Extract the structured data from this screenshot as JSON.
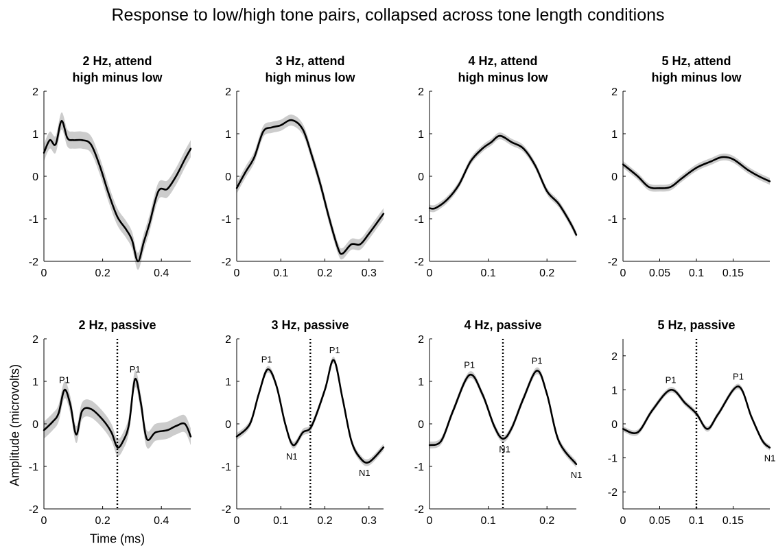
{
  "title": "Response to low/high tone pairs, collapsed across tone length conditions",
  "xlabel": "Time (ms)",
  "ylabel": "Amplitude (microvolts)",
  "colors": {
    "line": "#000000",
    "band": "#cccccc",
    "axis": "#000000"
  },
  "chart_data": [
    {
      "type": "line",
      "title": [
        "2 Hz, attend",
        "high minus low"
      ],
      "xlim": [
        0,
        0.5
      ],
      "xticks": [
        0,
        0.2,
        0.4
      ],
      "xtick_labels": [
        "0",
        "0.2",
        "0.4"
      ],
      "ylim": [
        -2,
        2
      ],
      "yticks": [
        -2,
        -1,
        0,
        1,
        2
      ],
      "yticks_labels": [
        "-2",
        "-1",
        "0",
        "1",
        "2"
      ],
      "x": [
        0,
        0.02,
        0.04,
        0.06,
        0.08,
        0.1,
        0.13,
        0.16,
        0.19,
        0.22,
        0.25,
        0.28,
        0.3,
        0.32,
        0.34,
        0.36,
        0.39,
        0.42,
        0.45,
        0.48,
        0.5
      ],
      "y": [
        0.55,
        0.85,
        0.75,
        1.3,
        0.9,
        0.85,
        0.85,
        0.75,
        0.25,
        -0.4,
        -0.95,
        -1.25,
        -1.5,
        -2.0,
        -1.55,
        -1.1,
        -0.35,
        -0.3,
        0.0,
        0.4,
        0.65
      ],
      "band": 0.2,
      "vline": null,
      "annotations": []
    },
    {
      "type": "line",
      "title": [
        "3 Hz, attend",
        "high minus low"
      ],
      "xlim": [
        0,
        0.333
      ],
      "xticks": [
        0,
        0.1,
        0.2,
        0.3
      ],
      "xtick_labels": [
        "0",
        "0.1",
        "0.2",
        "0.3"
      ],
      "ylim": [
        -2,
        2
      ],
      "yticks": [
        -2,
        -1,
        0,
        1,
        2
      ],
      "yticks_labels": [
        "-2",
        "-1",
        "0",
        "1",
        "2"
      ],
      "x": [
        0,
        0.02,
        0.04,
        0.06,
        0.08,
        0.1,
        0.125,
        0.15,
        0.17,
        0.19,
        0.21,
        0.23,
        0.24,
        0.26,
        0.28,
        0.3,
        0.333
      ],
      "y": [
        -0.28,
        0.1,
        0.45,
        1.05,
        1.15,
        1.2,
        1.32,
        1.1,
        0.5,
        -0.2,
        -1.0,
        -1.7,
        -1.82,
        -1.6,
        -1.6,
        -1.35,
        -0.88
      ],
      "band": 0.13,
      "vline": null,
      "annotations": []
    },
    {
      "type": "line",
      "title": [
        "4 Hz, attend",
        "high minus low"
      ],
      "xlim": [
        0,
        0.25
      ],
      "xticks": [
        0,
        0.1,
        0.2
      ],
      "xtick_labels": [
        "0",
        "0.1",
        "0.2"
      ],
      "ylim": [
        -2,
        2
      ],
      "yticks": [
        -2,
        -1,
        0,
        1,
        2
      ],
      "yticks_labels": [
        "-2",
        "-1",
        "0",
        "1",
        "2"
      ],
      "x": [
        0,
        0.01,
        0.03,
        0.05,
        0.07,
        0.09,
        0.105,
        0.12,
        0.14,
        0.16,
        0.18,
        0.2,
        0.22,
        0.24,
        0.25
      ],
      "y": [
        -0.75,
        -0.75,
        -0.55,
        -0.2,
        0.35,
        0.65,
        0.8,
        0.95,
        0.8,
        0.65,
        0.25,
        -0.35,
        -0.65,
        -1.1,
        -1.38
      ],
      "band": 0.08,
      "vline": null,
      "annotations": []
    },
    {
      "type": "line",
      "title": [
        "5 Hz, attend",
        "high minus low"
      ],
      "xlim": [
        0,
        0.2
      ],
      "xticks": [
        0,
        0.05,
        0.1,
        0.15
      ],
      "xtick_labels": [
        "0",
        "0.05",
        "0.1",
        "0.15"
      ],
      "ylim": [
        -2,
        2
      ],
      "yticks": [
        -2,
        -1,
        0,
        1,
        2
      ],
      "yticks_labels": [
        "-2",
        "-1",
        "0",
        "1",
        "2"
      ],
      "x": [
        0,
        0.02,
        0.035,
        0.05,
        0.065,
        0.08,
        0.1,
        0.12,
        0.135,
        0.15,
        0.17,
        0.185,
        0.2
      ],
      "y": [
        0.28,
        0.0,
        -0.25,
        -0.28,
        -0.25,
        -0.05,
        0.2,
        0.35,
        0.45,
        0.4,
        0.15,
        0.0,
        -0.12
      ],
      "band": 0.08,
      "vline": null,
      "annotations": []
    },
    {
      "type": "line",
      "title": [
        "2 Hz, passive"
      ],
      "xlim": [
        0,
        0.5
      ],
      "xticks": [
        0,
        0.2,
        0.4
      ],
      "xtick_labels": [
        "0",
        "0.2",
        "0.4"
      ],
      "ylim": [
        -2,
        2
      ],
      "yticks": [
        -2,
        -1,
        0,
        1,
        2
      ],
      "yticks_labels": [
        "-2",
        "-1",
        "0",
        "1",
        "2"
      ],
      "x": [
        0,
        0.03,
        0.05,
        0.07,
        0.09,
        0.11,
        0.13,
        0.16,
        0.2,
        0.23,
        0.25,
        0.27,
        0.29,
        0.31,
        0.33,
        0.35,
        0.38,
        0.42,
        0.45,
        0.48,
        0.5
      ],
      "y": [
        -0.15,
        0.05,
        0.25,
        0.8,
        0.45,
        -0.25,
        0.3,
        0.35,
        0.1,
        -0.2,
        -0.55,
        -0.4,
        0.0,
        1.05,
        0.5,
        -0.35,
        -0.2,
        -0.15,
        -0.05,
        0.0,
        -0.3
      ],
      "band": 0.2,
      "vline": 0.25,
      "annotations": [
        {
          "text": "P1",
          "x": 0.07,
          "y": 0.8,
          "pos": "above"
        },
        {
          "text": "P1",
          "x": 0.31,
          "y": 1.05,
          "pos": "above"
        }
      ]
    },
    {
      "type": "line",
      "title": [
        "3 Hz, passive"
      ],
      "xlim": [
        0,
        0.333
      ],
      "xticks": [
        0,
        0.1,
        0.2,
        0.3
      ],
      "xtick_labels": [
        "0",
        "0.1",
        "0.2",
        "0.3"
      ],
      "ylim": [
        -2,
        2
      ],
      "yticks": [
        -2,
        -1,
        0,
        1,
        2
      ],
      "yticks_labels": [
        "-2",
        "-1",
        "0",
        "1",
        "2"
      ],
      "x": [
        0,
        0.03,
        0.05,
        0.07,
        0.09,
        0.11,
        0.128,
        0.15,
        0.17,
        0.2,
        0.22,
        0.24,
        0.26,
        0.28,
        0.3,
        0.333
      ],
      "y": [
        -0.3,
        0.0,
        0.7,
        1.28,
        0.9,
        0.0,
        -0.5,
        -0.2,
        -0.05,
        0.8,
        1.5,
        0.6,
        -0.4,
        -0.8,
        -0.9,
        -0.55
      ],
      "band": 0.08,
      "vline": 0.167,
      "annotations": [
        {
          "text": "P1",
          "x": 0.068,
          "y": 1.28,
          "pos": "above"
        },
        {
          "text": "N1",
          "x": 0.125,
          "y": -0.52,
          "pos": "below"
        },
        {
          "text": "P1",
          "x": 0.222,
          "y": 1.5,
          "pos": "above"
        },
        {
          "text": "N1",
          "x": 0.29,
          "y": -0.9,
          "pos": "below"
        }
      ]
    },
    {
      "type": "line",
      "title": [
        "4 Hz, passive"
      ],
      "xlim": [
        0,
        0.25
      ],
      "xticks": [
        0,
        0.1,
        0.2
      ],
      "xtick_labels": [
        "0",
        "0.1",
        "0.2"
      ],
      "ylim": [
        -2,
        2
      ],
      "yticks": [
        -2,
        -1,
        0,
        1,
        2
      ],
      "yticks_labels": [
        "-2",
        "-1",
        "0",
        "1",
        "2"
      ],
      "x": [
        0,
        0.02,
        0.04,
        0.068,
        0.09,
        0.11,
        0.125,
        0.14,
        0.16,
        0.183,
        0.2,
        0.22,
        0.25
      ],
      "y": [
        -0.5,
        -0.4,
        0.3,
        1.15,
        0.7,
        -0.05,
        -0.35,
        -0.1,
        0.6,
        1.25,
        0.7,
        -0.4,
        -0.95
      ],
      "band": 0.08,
      "vline": 0.125,
      "annotations": [
        {
          "text": "P1",
          "x": 0.068,
          "y": 1.15,
          "pos": "above"
        },
        {
          "text": "N1",
          "x": 0.128,
          "y": -0.35,
          "pos": "below"
        },
        {
          "text": "P1",
          "x": 0.183,
          "y": 1.25,
          "pos": "above"
        },
        {
          "text": "N1",
          "x": 0.25,
          "y": -0.95,
          "pos": "below"
        }
      ]
    },
    {
      "type": "line",
      "title": [
        "5 Hz, passive"
      ],
      "xlim": [
        0,
        0.2
      ],
      "xticks": [
        0,
        0.05,
        0.1,
        0.15
      ],
      "xtick_labels": [
        "0",
        "0.05",
        "0.1",
        "0.15"
      ],
      "ylim": [
        -2.5,
        2.5
      ],
      "yticks": [
        -2,
        -1,
        0,
        1,
        2
      ],
      "yticks_labels": [
        "-2",
        "-1",
        "0",
        "1",
        "2"
      ],
      "x": [
        0,
        0.02,
        0.04,
        0.065,
        0.085,
        0.1,
        0.115,
        0.13,
        0.157,
        0.175,
        0.19,
        0.2
      ],
      "y": [
        -0.15,
        -0.25,
        0.4,
        1.0,
        0.6,
        0.3,
        -0.15,
        0.3,
        1.1,
        0.2,
        -0.5,
        -0.7
      ],
      "band": 0.08,
      "vline": 0.1,
      "annotations": [
        {
          "text": "P1",
          "x": 0.065,
          "y": 1.0,
          "pos": "above"
        },
        {
          "text": "P1",
          "x": 0.157,
          "y": 1.1,
          "pos": "above"
        },
        {
          "text": "N1",
          "x": 0.2,
          "y": -0.7,
          "pos": "below"
        }
      ]
    }
  ]
}
